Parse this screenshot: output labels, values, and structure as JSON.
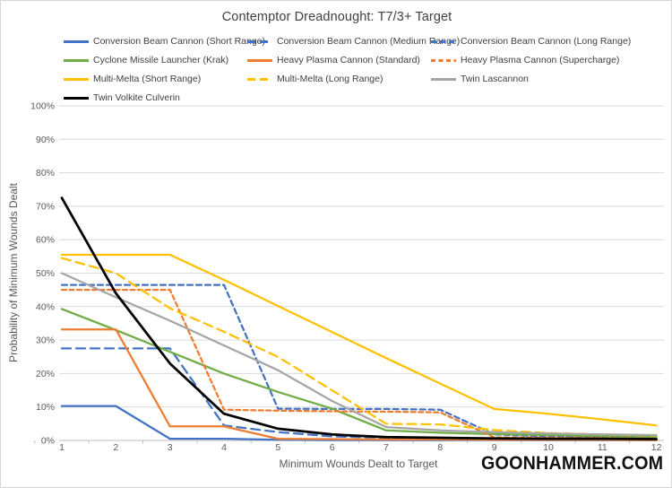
{
  "title": "Contemptor Dreadnought: T7/3+ Target",
  "watermark": "GOONHAMMER.COM",
  "axes": {
    "x": {
      "title": "Minimum Wounds Dealt to Target",
      "tick_labels": [
        "1",
        "2",
        "3",
        "4",
        "5",
        "6",
        "7",
        "8",
        "9",
        "10",
        "11",
        "12"
      ]
    },
    "y": {
      "title": "Probability of Minimum Wounds Dealt",
      "tick_labels": [
        "0%",
        "10%",
        "20%",
        "30%",
        "40%",
        "50%",
        "60%",
        "70%",
        "80%",
        "90%",
        "100%"
      ],
      "min": 0,
      "max": 100
    }
  },
  "style_colors": {
    "grid": "#d9d9d9",
    "axis_line": "#bfbfbf",
    "tick_text": "#595959",
    "title_text": "#404040"
  },
  "chart_data": {
    "type": "line",
    "title": "Contemptor Dreadnought: T7/3+ Target",
    "xlabel": "Minimum Wounds Dealt to Target",
    "ylabel": "Probability of Minimum Wounds Dealt",
    "x": [
      1,
      2,
      3,
      4,
      5,
      6,
      7,
      8,
      9,
      10,
      11,
      12
    ],
    "ylim": [
      0,
      100
    ],
    "y_unit": "percent",
    "grid": "horizontal",
    "legend_position": "top",
    "series": [
      {
        "name": "Conversion Beam Cannon (Short Range)",
        "color": "#4472C4",
        "dash": "solid",
        "values": [
          10.3,
          10.3,
          0.5,
          0.5,
          0.2,
          0.1,
          0.1,
          0.1,
          0.1,
          0.1,
          0.1,
          0.1
        ]
      },
      {
        "name": "Conversion Beam Cannon (Medium Range)",
        "color": "#4472C4",
        "dash": "long",
        "values": [
          27.5,
          27.5,
          27.5,
          4.5,
          2.5,
          1.2,
          0.8,
          0.6,
          0.5,
          0.5,
          0.4,
          0.4
        ]
      },
      {
        "name": "Conversion Beam Cannon (Long Range)",
        "color": "#4472C4",
        "dash": "medium",
        "values": [
          46.5,
          46.5,
          46.5,
          46.5,
          9.5,
          9.4,
          9.4,
          9.2,
          1.8,
          1.2,
          1.0,
          0.9
        ]
      },
      {
        "name": "Cyclone Missile Launcher (Krak)",
        "color": "#70AD47",
        "dash": "solid",
        "values": [
          39.3,
          33.0,
          26.5,
          20.0,
          14.5,
          9.5,
          3.0,
          2.3,
          1.9,
          1.6,
          1.3,
          1.1
        ]
      },
      {
        "name": "Heavy Plasma Cannon (Standard)",
        "color": "#ED7D31",
        "dash": "solid",
        "values": [
          33.2,
          33.2,
          4.2,
          4.2,
          0.5,
          0.4,
          0.3,
          0.3,
          0.2,
          0.2,
          0.2,
          0.1
        ]
      },
      {
        "name": "Heavy Plasma Cannon (Supercharge)",
        "color": "#ED7D31",
        "dash": "short",
        "values": [
          45.0,
          45.0,
          45.0,
          9.2,
          8.9,
          8.7,
          8.6,
          8.4,
          0.9,
          0.8,
          0.7,
          0.6
        ]
      },
      {
        "name": "Multi-Melta (Short Range)",
        "color": "#FFC000",
        "dash": "solid",
        "values": [
          55.5,
          55.5,
          55.5,
          48.0,
          40.2,
          32.4,
          24.6,
          17.0,
          9.4,
          8.0,
          6.3,
          4.5
        ]
      },
      {
        "name": "Multi-Melta (Long Range)",
        "color": "#FFC000",
        "dash": "long",
        "values": [
          54.5,
          50.0,
          39.5,
          32.5,
          25.0,
          15.0,
          5.0,
          4.8,
          3.1,
          2.2,
          1.8,
          1.5
        ]
      },
      {
        "name": "Twin Lascannon",
        "color": "#A5A5A5",
        "dash": "solid",
        "values": [
          50.0,
          42.8,
          35.8,
          28.4,
          21.0,
          11.8,
          4.0,
          3.0,
          2.5,
          2.1,
          1.8,
          1.6
        ]
      },
      {
        "name": "Twin Volkite Culverin",
        "color": "#000000",
        "dash": "solid",
        "values": [
          72.5,
          44.0,
          23.0,
          8.0,
          3.5,
          1.8,
          1.0,
          0.8,
          0.6,
          0.5,
          0.5,
          0.4
        ]
      }
    ]
  }
}
